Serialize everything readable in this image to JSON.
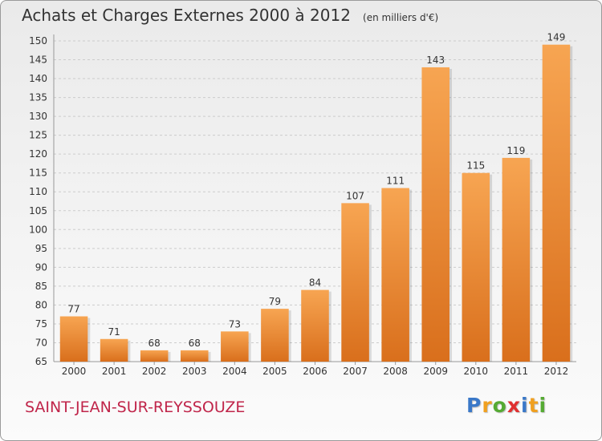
{
  "header": {
    "title": "Achats et Charges Externes 2000 à 2012",
    "unit": "(en milliers d'€)"
  },
  "footer": {
    "commune": "SAINT-JEAN-SUR-REYSSOUZE",
    "brand_letters": [
      {
        "char": "P",
        "color": "#3a78c8"
      },
      {
        "char": "r",
        "color": "#f0a020"
      },
      {
        "char": "o",
        "color": "#55aa33"
      },
      {
        "char": "x",
        "color": "#e03030"
      },
      {
        "char": "i",
        "color": "#3a78c8"
      },
      {
        "char": "t",
        "color": "#f0a020"
      },
      {
        "char": "i",
        "color": "#55aa33"
      }
    ]
  },
  "colors": {
    "bar_light": "#f7a552",
    "bar_dark": "#d96f1c",
    "grid": "#cccccc",
    "text": "#333333"
  },
  "chart_data": {
    "type": "bar",
    "title": "Achats et Charges Externes 2000 à 2012",
    "xlabel": "",
    "ylabel": "",
    "categories": [
      "2000",
      "2001",
      "2002",
      "2003",
      "2004",
      "2005",
      "2006",
      "2007",
      "2008",
      "2009",
      "2010",
      "2011",
      "2012"
    ],
    "values": [
      77,
      71,
      68,
      68,
      73,
      79,
      84,
      107,
      111,
      143,
      115,
      119,
      149
    ],
    "ylim": [
      65,
      150
    ],
    "yticks": [
      65,
      70,
      75,
      80,
      85,
      90,
      95,
      100,
      105,
      110,
      115,
      120,
      125,
      130,
      135,
      140,
      145,
      150
    ],
    "grid": true,
    "data_labels": true
  }
}
